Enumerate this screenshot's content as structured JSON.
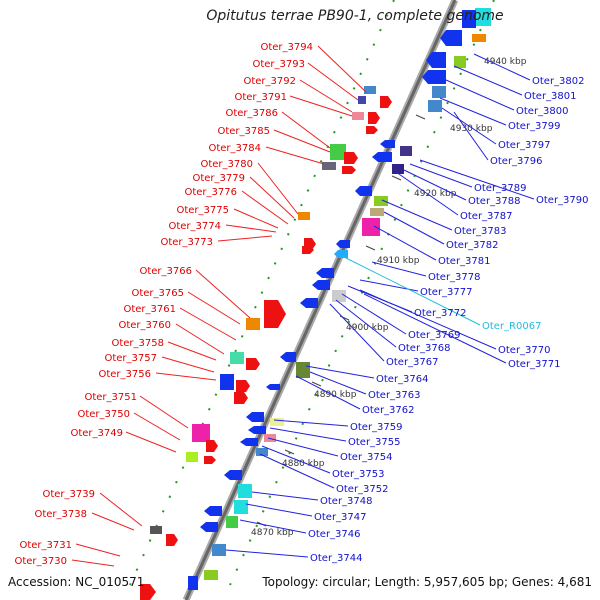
{
  "title": "Opitutus terrae PB90-1, complete genome",
  "accession": "Accession: NC_010571",
  "summary": "Topology: circular; Length: 5,957,605 bp; Genes: 4,681",
  "ticks": [
    "4940 kbp",
    "4930 kbp",
    "4920 kbp",
    "4910 kbp",
    "4900 kbp",
    "4890 kbp",
    "4880 kbp",
    "4870 kbp"
  ],
  "left_labels": [
    "Oter_3794",
    "Oter_3793",
    "Oter_3792",
    "Oter_3791",
    "Oter_3786",
    "Oter_3785",
    "Oter_3784",
    "Oter_3780",
    "Oter_3779",
    "Oter_3776",
    "Oter_3775",
    "Oter_3774",
    "Oter_3773",
    "Oter_3766",
    "Oter_3765",
    "Oter_3761",
    "Oter_3760",
    "Oter_3758",
    "Oter_3757",
    "Oter_3756",
    "Oter_3751",
    "Oter_3750",
    "Oter_3749",
    "Oter_3739",
    "Oter_3738",
    "Oter_3731",
    "Oter_3730"
  ],
  "right_labels": [
    "Oter_3802",
    "Oter_3801",
    "Oter_3800",
    "Oter_3799",
    "Oter_3797",
    "Oter_3796",
    "Oter_3790",
    "Oter_3789",
    "Oter_3788",
    "Oter_3787",
    "Oter_3783",
    "Oter_3782",
    "Oter_3781",
    "Oter_3778",
    "Oter_3777",
    "Oter_3772",
    "Oter_R0067",
    "Oter_3770",
    "Oter_3771",
    "Oter_3769",
    "Oter_3768",
    "Oter_3767",
    "Oter_3764",
    "Oter_3763",
    "Oter_3762",
    "Oter_3759",
    "Oter_3755",
    "Oter_3754",
    "Oter_3753",
    "Oter_3752",
    "Oter_3748",
    "Oter_3747",
    "Oter_3746",
    "Oter_3744"
  ],
  "colors": {
    "forward_label": "#dd0000",
    "reverse_label": "#0000cc",
    "rna_label": "#22bbdd",
    "backbone": "#777777"
  }
}
